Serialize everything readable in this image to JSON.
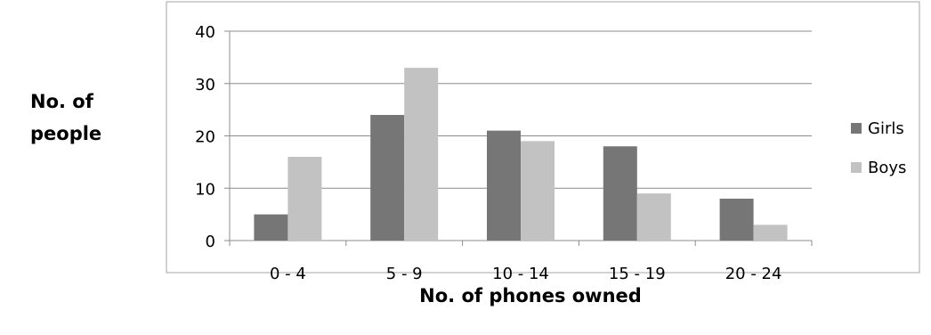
{
  "chart_data": {
    "type": "bar",
    "title": "",
    "xlabel": "No. of phones owned",
    "ylabel_lines": [
      "No. of",
      "people"
    ],
    "categories": [
      "0 - 4",
      "5 - 9",
      "10 - 14",
      "15 - 19",
      "20 - 24"
    ],
    "series": [
      {
        "name": "Girls",
        "values": [
          5,
          24,
          21,
          18,
          8
        ],
        "color": "#767676"
      },
      {
        "name": "Boys",
        "values": [
          16,
          33,
          19,
          9,
          3
        ],
        "color": "#c2c2c2"
      }
    ],
    "yticks": [
      "0",
      "10",
      "20",
      "30",
      "40"
    ],
    "ylim": [
      0,
      40
    ],
    "grid": true,
    "legend_position": "right"
  }
}
